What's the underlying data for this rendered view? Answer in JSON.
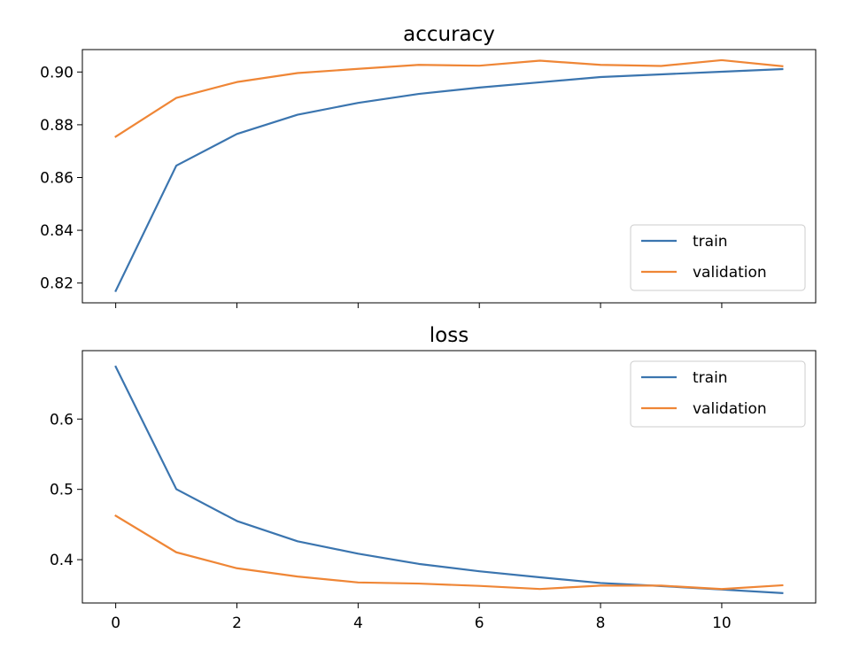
{
  "chart_data": [
    {
      "type": "line",
      "title": "accuracy",
      "xlabel": "",
      "ylabel": "",
      "x": [
        0,
        1,
        2,
        3,
        4,
        5,
        6,
        7,
        8,
        9,
        10,
        11
      ],
      "xlim": [
        -0.55,
        11.55
      ],
      "ylim": [
        0.8125,
        0.9085
      ],
      "yticks": [
        0.82,
        0.84,
        0.86,
        0.88,
        0.9
      ],
      "yticklabels": [
        "0.82",
        "0.84",
        "0.86",
        "0.88",
        "0.90"
      ],
      "xticks": [
        0,
        2,
        4,
        6,
        8,
        10
      ],
      "xticklabels": [],
      "legend_position": "lower-right",
      "grid": false,
      "series": [
        {
          "name": "train",
          "color": "#3b75af",
          "values": [
            0.817,
            0.8645,
            0.8765,
            0.8838,
            0.8883,
            0.8917,
            0.8941,
            0.8961,
            0.8981,
            0.8991,
            0.9001,
            0.9011
          ]
        },
        {
          "name": "validation",
          "color": "#ef8636",
          "values": [
            0.8755,
            0.8902,
            0.8962,
            0.8996,
            0.9012,
            0.9027,
            0.9024,
            0.9043,
            0.9027,
            0.9023,
            0.9045,
            0.9022
          ]
        }
      ]
    },
    {
      "type": "line",
      "title": "loss",
      "xlabel": "",
      "ylabel": "",
      "x": [
        0,
        1,
        2,
        3,
        4,
        5,
        6,
        7,
        8,
        9,
        10,
        11
      ],
      "xlim": [
        -0.55,
        11.55
      ],
      "ylim": [
        0.3384,
        0.6973
      ],
      "yticks": [
        0.4,
        0.5,
        0.6
      ],
      "yticklabels": [
        "0.4",
        "0.5",
        "0.6"
      ],
      "xticks": [
        0,
        2,
        4,
        6,
        8,
        10
      ],
      "xticklabels": [
        "0",
        "2",
        "4",
        "6",
        "8",
        "10"
      ],
      "legend_position": "upper-right",
      "grid": false,
      "series": [
        {
          "name": "train",
          "color": "#3b75af",
          "values": [
            0.6745,
            0.5003,
            0.455,
            0.4262,
            0.4085,
            0.394,
            0.3835,
            0.3749,
            0.3668,
            0.3625,
            0.3575,
            0.3525
          ]
        },
        {
          "name": "validation",
          "color": "#ef8636",
          "values": [
            0.4625,
            0.4105,
            0.3878,
            0.376,
            0.3676,
            0.366,
            0.3627,
            0.3583,
            0.3631,
            0.3631,
            0.3582,
            0.3636
          ]
        }
      ]
    }
  ]
}
